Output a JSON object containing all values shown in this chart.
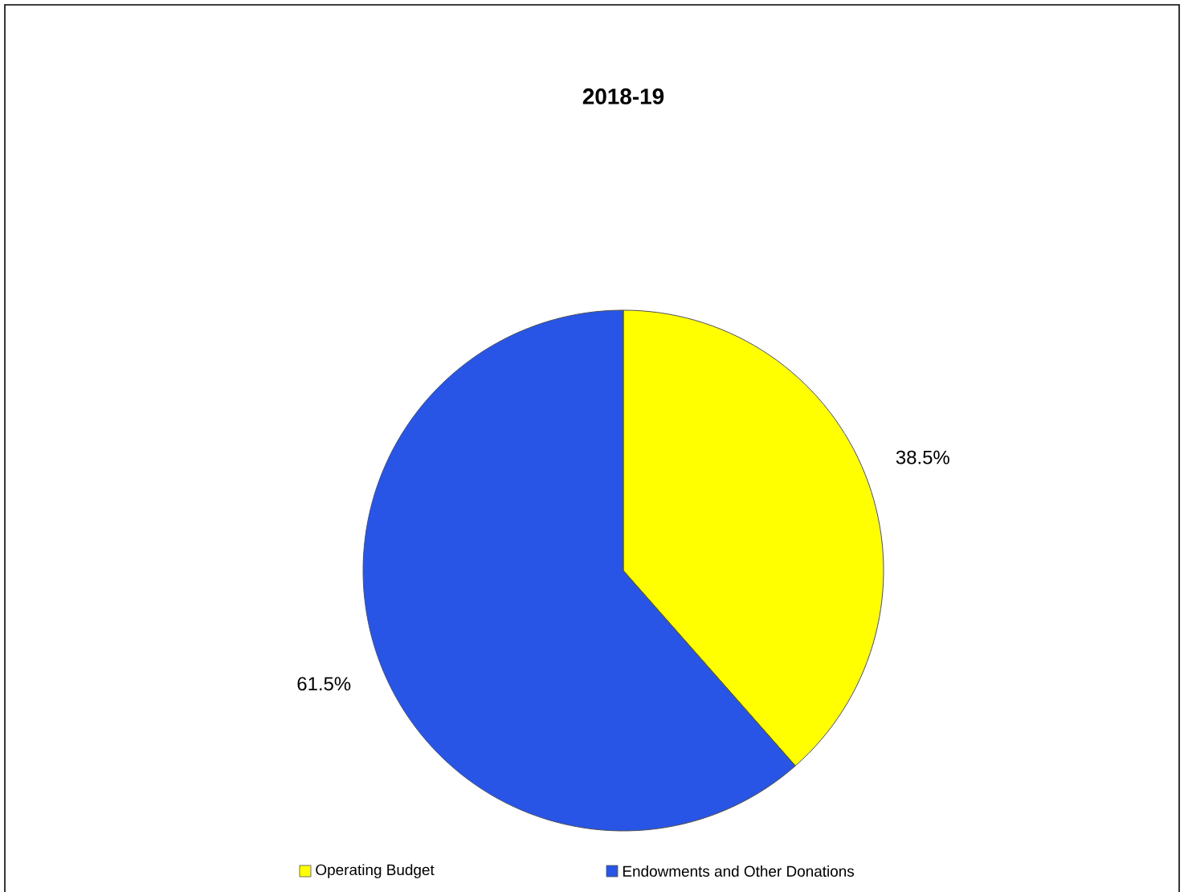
{
  "chart_data": {
    "type": "pie",
    "title": "2018-19",
    "categories": [
      "Operating Budget",
      "Endowments and Other Donations"
    ],
    "values": [
      38.5,
      61.5
    ],
    "colors": [
      "#ffff00",
      "#2855e6"
    ],
    "value_labels": [
      "38.5%",
      "61.5%"
    ],
    "legend": "bottom"
  }
}
